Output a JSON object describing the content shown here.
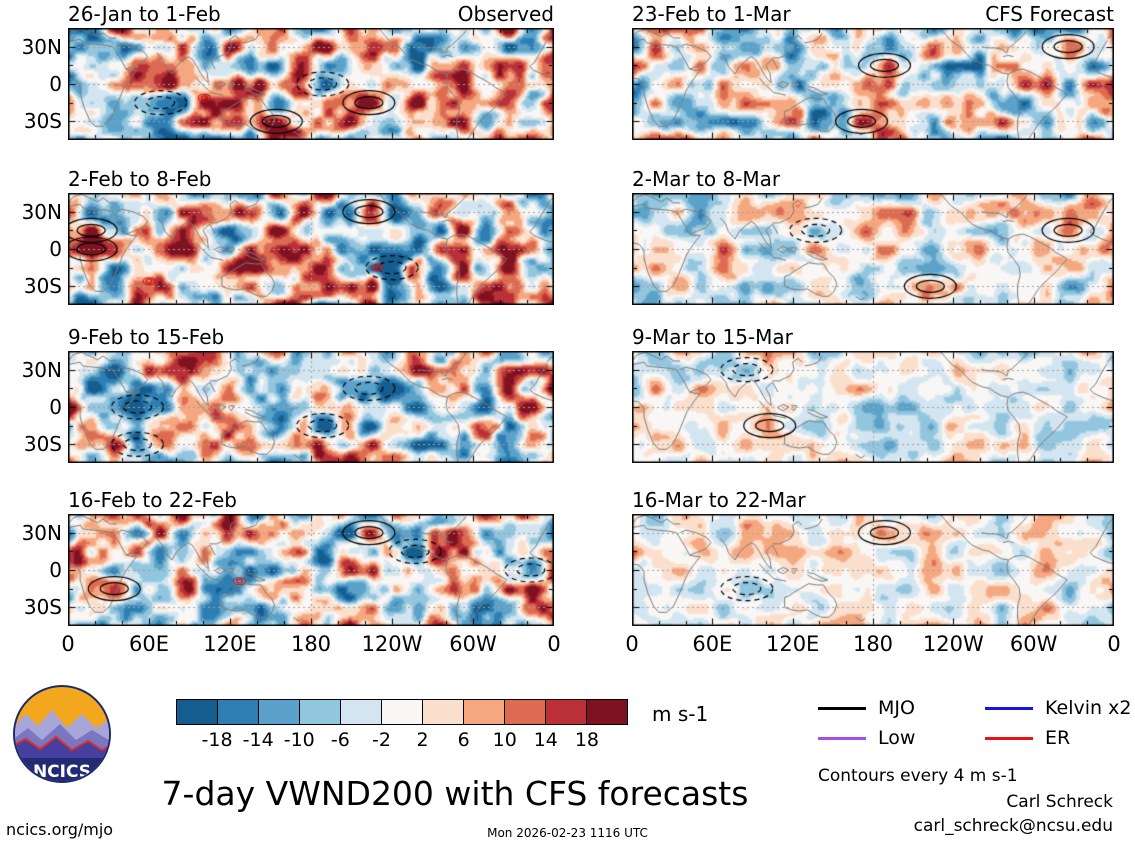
{
  "panels": {
    "observed_label": "Observed",
    "forecast_label": "CFS Forecast",
    "left_titles": [
      "26-Jan to 1-Feb",
      "2-Feb to 8-Feb",
      "9-Feb to 15-Feb",
      "16-Feb to 22-Feb"
    ],
    "right_titles": [
      "23-Feb to 1-Mar",
      "2-Mar to 8-Mar",
      "9-Mar to 15-Mar",
      "16-Mar to 22-Mar"
    ],
    "y_ticks": [
      "30N",
      "0",
      "30S"
    ],
    "x_ticks": [
      "0",
      "60E",
      "120E",
      "180",
      "120W",
      "60W",
      "0"
    ]
  },
  "colorbar": {
    "ticks": [
      "-18",
      "-14",
      "-10",
      "-6",
      "-2",
      "2",
      "6",
      "10",
      "14",
      "18"
    ],
    "units": "m s-1",
    "colors": [
      "#155d8f",
      "#2e7eb3",
      "#5aa2c9",
      "#92c5de",
      "#d3e5f0",
      "#f9f7f5",
      "#fbdfcd",
      "#f5a77f",
      "#dd6b51",
      "#bb3038",
      "#7f1220"
    ]
  },
  "legend": {
    "items": [
      {
        "label": "MJO",
        "color": "#000000"
      },
      {
        "label": "Low",
        "color": "#a64ce8"
      },
      {
        "label": "Kelvin x2",
        "color": "#1414e6"
      },
      {
        "label": "ER",
        "color": "#e61414"
      }
    ],
    "note": "Contours every 4 m s-1"
  },
  "footer": {
    "title": "7-day VWND200 with CFS forecasts",
    "site": "ncics.org/mjo",
    "timestamp": "Mon 2026-02-23 1116 UTC",
    "credit_name": "Carl Schreck",
    "credit_email": "carl_schreck@ncsu.edu",
    "logo_text": "NCICS"
  },
  "chart_data": {
    "type": "heatmap",
    "title": "7-day VWND200 with CFS forecasts",
    "variable": "200-hPa meridional wind (VWND200) anomaly",
    "units": "m s-1",
    "columns": [
      "Observed",
      "CFS Forecast"
    ],
    "panels": [
      {
        "column": "Observed",
        "period": "26-Jan to 1-Feb"
      },
      {
        "column": "Observed",
        "period": "2-Feb to 8-Feb"
      },
      {
        "column": "Observed",
        "period": "9-Feb to 15-Feb"
      },
      {
        "column": "Observed",
        "period": "16-Feb to 22-Feb"
      },
      {
        "column": "CFS Forecast",
        "period": "23-Feb to 1-Mar"
      },
      {
        "column": "CFS Forecast",
        "period": "2-Mar to 8-Mar"
      },
      {
        "column": "CFS Forecast",
        "period": "9-Mar to 15-Mar"
      },
      {
        "column": "CFS Forecast",
        "period": "16-Mar to 22-Mar"
      }
    ],
    "x_tick_labels": [
      "0",
      "60E",
      "120E",
      "180",
      "120W",
      "60W",
      "0"
    ],
    "y_tick_labels": [
      "30N",
      "0",
      "30S"
    ],
    "lon_range_deg": [
      0,
      360
    ],
    "lat_range_deg": [
      -45,
      45
    ],
    "colorbar_levels": [
      -18,
      -14,
      -10,
      -6,
      -2,
      2,
      6,
      10,
      14,
      18
    ],
    "contour_note": "Contours every 4 m s-1",
    "overlay_waves": [
      "MJO",
      "Low",
      "Kelvin x2",
      "ER"
    ]
  }
}
